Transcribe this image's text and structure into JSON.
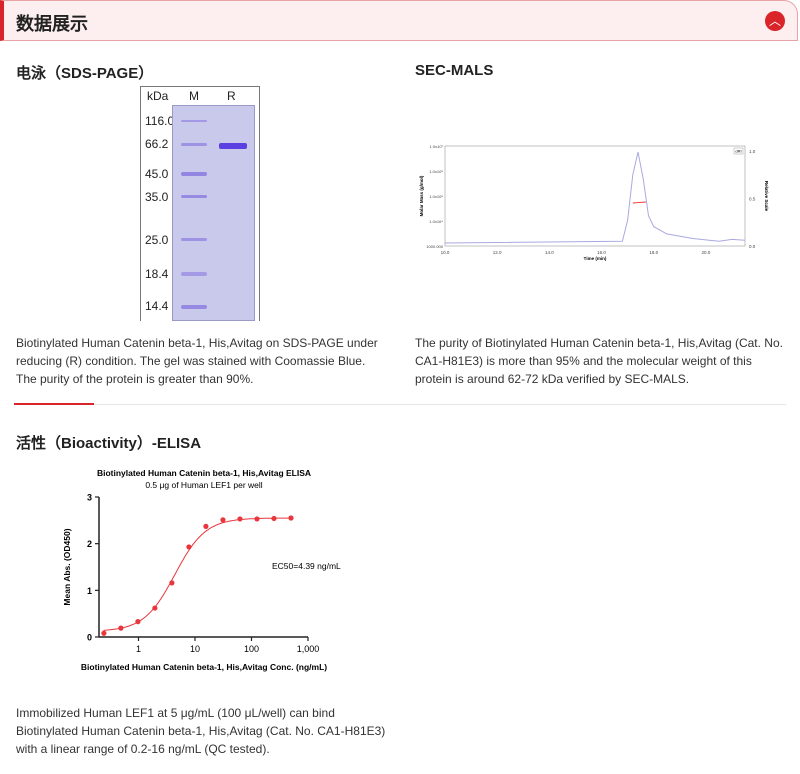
{
  "header": {
    "title": "数据展示",
    "collapse_icon": "chevron-up-icon"
  },
  "sds_page": {
    "title": "电泳（SDS-PAGE）",
    "gel": {
      "unit_label": "kDa",
      "lane_labels": [
        "M",
        "R"
      ],
      "markers": [
        "116.0",
        "66.2",
        "45.0",
        "35.0",
        "25.0",
        "18.4",
        "14.4"
      ]
    },
    "description": "Biotinylated Human Catenin beta-1, His,Avitag on SDS-PAGE under reducing (R) condition. The gel was stained with Coomassie Blue. The purity of the protein is greater than 90%."
  },
  "sec_mals": {
    "title": "SEC-MALS",
    "description": "The purity of Biotinylated Human Catenin beta-1, His,Avitag (Cat. No. CA1-H81E3) is more than 95% and the molecular weight of this protein is around 62-72 kDa verified by SEC-MALS."
  },
  "bioactivity": {
    "title": "活性（Bioactivity）-ELISA",
    "description": "Immobilized Human LEF1 at 5 μg/mL (100 μL/well) can bind Biotinylated Human Catenin beta-1, His,Avitag (Cat. No. CA1-H81E3) with a linear range of 0.2-16 ng/mL (QC tested)."
  },
  "chart_data": [
    {
      "type": "line",
      "title": "SEC-MALS",
      "xlabel": "Time (min)",
      "ylabel": "Molar Mass (g/mol)",
      "y2label": "Relative Scale",
      "legend": "dRI",
      "xlim": [
        10,
        21.5
      ],
      "x_ticks": [
        "10.0",
        "12.0",
        "14.0",
        "16.0",
        "18.0",
        "20.0"
      ],
      "y_ticks": [
        "1000.000",
        "1.0x10⁴",
        "1.0x10⁵",
        "1.0x10⁶",
        "1.0x10⁷"
      ],
      "y2_ticks": [
        "0.0",
        "0.5",
        "1.0"
      ],
      "series": [
        {
          "name": "dRI",
          "x": [
            10,
            16.8,
            17.0,
            17.2,
            17.4,
            17.6,
            17.8,
            18.0,
            18.5,
            19.5,
            20.5,
            21.0,
            21.5
          ],
          "y": [
            0.0,
            0.02,
            0.25,
            0.75,
            1.0,
            0.7,
            0.3,
            0.18,
            0.1,
            0.05,
            0.02,
            0.04,
            0.03
          ]
        },
        {
          "name": "Molar mass",
          "x": [
            17.2,
            17.7
          ],
          "y": [
            68000,
            68000
          ]
        }
      ]
    },
    {
      "type": "scatter",
      "title": "Biotinylated Human Catenin beta-1, His,Avitag ELISA",
      "subtitle": "0.5 μg of  Human LEF1 per well",
      "xlabel": "Biotinylated Human Catenin beta-1, His,Avitag Conc. (ng/mL)",
      "ylabel": "Mean Abs. (OD450)",
      "x_scale": "log",
      "xlim": [
        0.2,
        1000
      ],
      "ylim": [
        0,
        3
      ],
      "x_ticks": [
        "1",
        "10",
        "100",
        "1,000"
      ],
      "x_tick_values": [
        1,
        10,
        100,
        1000
      ],
      "y_ticks": [
        "0",
        "1",
        "2",
        "3"
      ],
      "annotation": "EC50=4.39 ng/mL",
      "fit": {
        "bottom": 0.12,
        "top": 2.55,
        "ec50": 4.39,
        "hill": 1.6
      },
      "x": [
        0.244,
        0.488,
        0.977,
        1.95,
        3.9,
        7.8,
        15.6,
        31.25,
        62.5,
        125,
        250,
        500
      ],
      "y": [
        0.08,
        0.19,
        0.33,
        0.62,
        1.16,
        1.93,
        2.37,
        2.51,
        2.53,
        2.53,
        2.54,
        2.55
      ],
      "colors": {
        "series": "#e8363c"
      }
    }
  ]
}
